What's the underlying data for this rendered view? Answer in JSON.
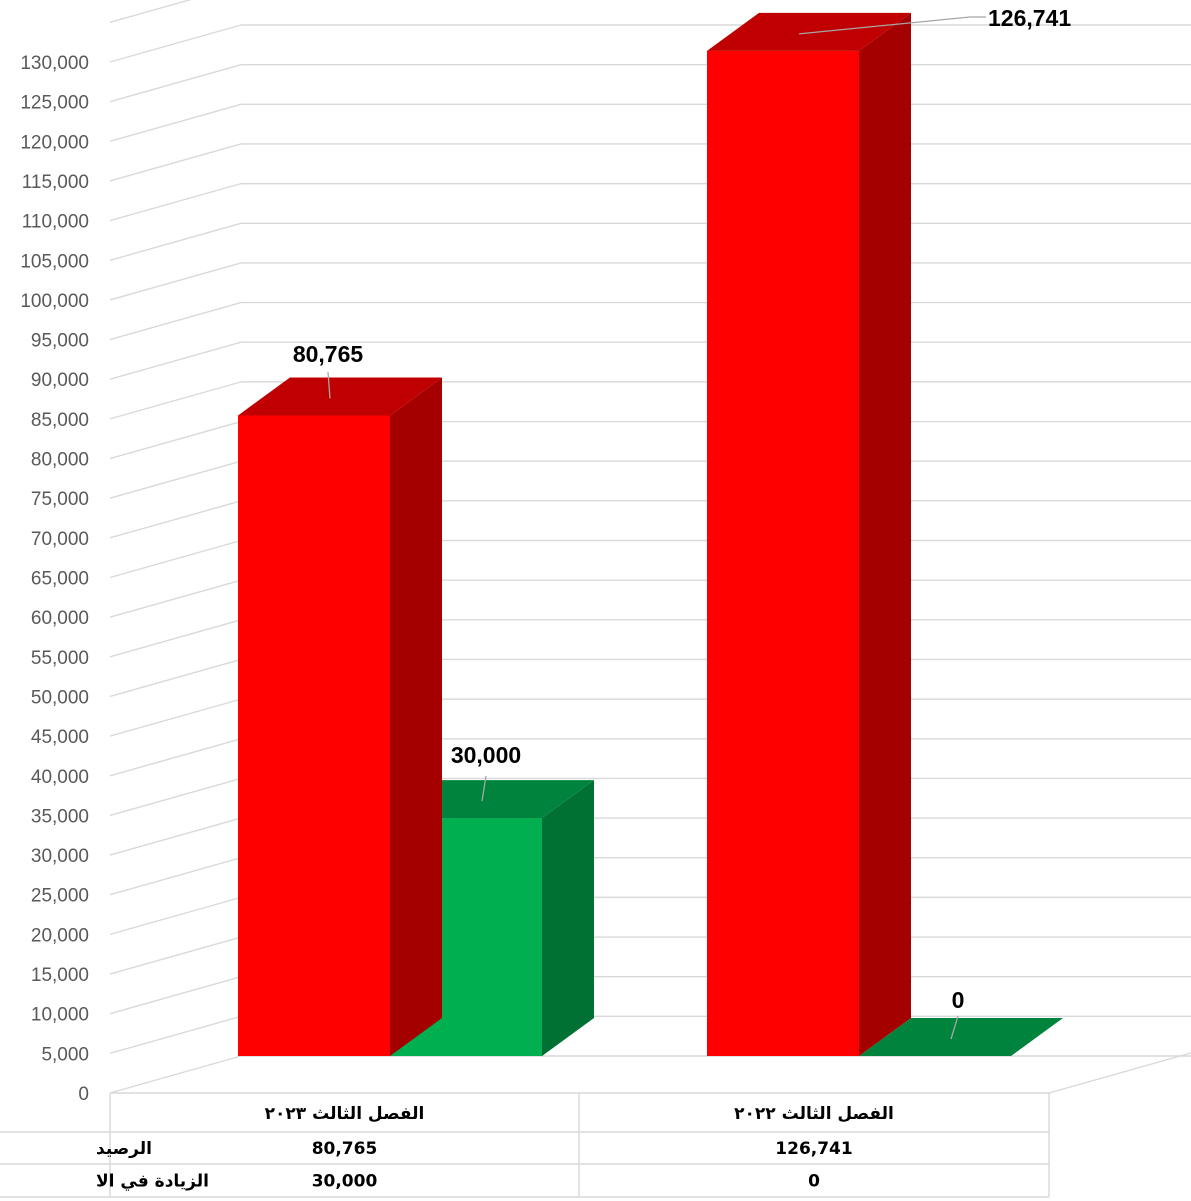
{
  "chart_data": {
    "type": "bar",
    "style": "3d-clustered-column-with-data-table",
    "categories": [
      "الفصل الثالث ٢٠٢٣",
      "الفصل الثالث ٢٠٢٢"
    ],
    "series": [
      {
        "name": "الرصيد",
        "values": [
          80765,
          126741
        ],
        "value_labels": [
          "80,765",
          "126,741"
        ],
        "color": "#ff0000",
        "side_color": "#a50000",
        "top_color": "#c00000"
      },
      {
        "name": "الزيادة في الا",
        "values": [
          30000,
          0
        ],
        "value_labels": [
          "30,000",
          "0"
        ],
        "color": "#00b050",
        "side_color": "#007033",
        "top_color": "#00843d"
      }
    ],
    "ylim": [
      0,
      130000
    ],
    "ytick_step": 5000,
    "yticks": [
      "0",
      "5,000",
      "10,000",
      "15,000",
      "20,000",
      "25,000",
      "30,000",
      "35,000",
      "40,000",
      "45,000",
      "50,000",
      "55,000",
      "60,000",
      "65,000",
      "70,000",
      "75,000",
      "80,000",
      "85,000",
      "90,000",
      "95,000",
      "100,000",
      "105,000",
      "110,000",
      "115,000",
      "120,000",
      "125,000",
      "130,000"
    ],
    "grid": true,
    "data_table": true,
    "legend": "in-data-table"
  }
}
